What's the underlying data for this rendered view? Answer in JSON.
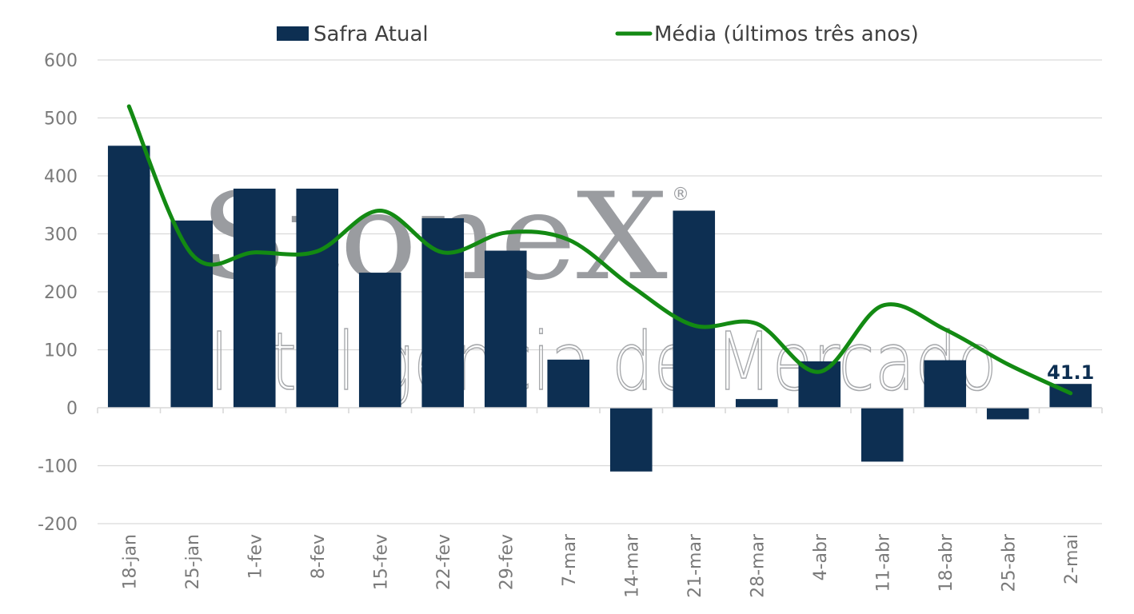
{
  "colors": {
    "bar": "#0d2f52",
    "line": "#138a13",
    "grid": "#d9d9d9",
    "axis_text": "#7a7a7a",
    "watermark": "#9a9ca0"
  },
  "watermark": {
    "brand": "StoneX",
    "registered": "®",
    "tagline": "Inteligência de Mercado"
  },
  "chart_data": {
    "type": "bar",
    "categories": [
      "18-jan",
      "25-jan",
      "1-fev",
      "8-fev",
      "15-fev",
      "22-fev",
      "29-fev",
      "7-mar",
      "14-mar",
      "21-mar",
      "28-mar",
      "4-abr",
      "11-abr",
      "18-abr",
      "25-abr",
      "2-mai"
    ],
    "series": [
      {
        "name": "Safra Atual",
        "type": "bar",
        "values": [
          452,
          323,
          378,
          378,
          233,
          327,
          271,
          83,
          -110,
          340,
          15,
          80,
          -93,
          82,
          -20,
          41.1
        ]
      },
      {
        "name": "Média (últimos três anos)",
        "type": "line",
        "values": [
          520,
          265,
          268,
          270,
          340,
          268,
          302,
          290,
          210,
          142,
          145,
          62,
          176,
          135,
          75,
          25
        ]
      }
    ],
    "annotations": [
      {
        "category": "2-mai",
        "series": "Safra Atual",
        "text": "41.1"
      }
    ],
    "ylim": [
      -200,
      600
    ],
    "yticks": [
      600,
      500,
      400,
      300,
      200,
      100,
      0,
      -100,
      -200
    ],
    "grid": true,
    "legend_position": "top",
    "title": "",
    "xlabel": "",
    "ylabel": ""
  }
}
